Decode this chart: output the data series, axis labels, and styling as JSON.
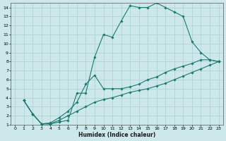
{
  "xlabel": "Humidex (Indice chaleur)",
  "bg_color": "#cce8ea",
  "grid_color": "#aacfd2",
  "line_color": "#1a7a6e",
  "xlim": [
    -0.5,
    23.5
  ],
  "ylim": [
    1,
    14.5
  ],
  "xticks": [
    0,
    1,
    2,
    3,
    4,
    5,
    6,
    7,
    8,
    9,
    10,
    11,
    12,
    13,
    14,
    15,
    16,
    17,
    18,
    19,
    20,
    21,
    22,
    23
  ],
  "yticks": [
    1,
    2,
    3,
    4,
    5,
    6,
    7,
    8,
    9,
    10,
    11,
    12,
    13,
    14
  ],
  "series": [
    {
      "x": [
        1,
        2,
        3,
        4,
        5,
        6,
        7,
        8,
        9,
        10,
        11,
        12,
        13,
        14,
        15,
        16,
        17,
        18,
        19,
        20,
        21,
        22,
        23
      ],
      "y": [
        3.7,
        2.2,
        1.1,
        1.1,
        1.3,
        1.5,
        4.5,
        4.5,
        8.5,
        11.0,
        10.7,
        12.5,
        14.2,
        14.0,
        14.0,
        14.5,
        14.0,
        13.5,
        13.0,
        10.2,
        9.0,
        8.2,
        8.0
      ]
    },
    {
      "x": [
        1,
        2,
        3,
        4,
        5,
        6,
        7,
        8,
        9,
        10,
        11,
        12,
        13,
        14,
        15,
        16,
        17,
        18,
        19,
        20,
        21,
        22,
        23
      ],
      "y": [
        3.7,
        2.2,
        1.1,
        1.2,
        1.8,
        2.5,
        3.5,
        5.5,
        6.5,
        5.0,
        5.0,
        5.0,
        5.2,
        5.5,
        6.0,
        6.3,
        6.8,
        7.2,
        7.5,
        7.8,
        8.2,
        8.2,
        8.0
      ]
    },
    {
      "x": [
        1,
        2,
        3,
        4,
        5,
        6,
        7,
        8,
        9,
        10,
        11,
        12,
        13,
        14,
        15,
        16,
        17,
        18,
        19,
        20,
        21,
        22,
        23
      ],
      "y": [
        3.7,
        2.2,
        1.1,
        1.1,
        1.5,
        2.0,
        2.5,
        3.0,
        3.5,
        3.8,
        4.0,
        4.3,
        4.6,
        4.8,
        5.0,
        5.3,
        5.6,
        6.0,
        6.4,
        6.8,
        7.2,
        7.6,
        8.0
      ]
    }
  ]
}
